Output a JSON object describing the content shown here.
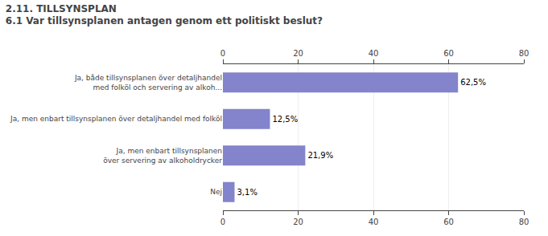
{
  "chart_data": {
    "type": "bar",
    "orientation": "horizontal",
    "title": "2.11. TILLSYNSPLAN",
    "subtitle": "6.1 Var tillsynsplanen antagen genom ett politiskt beslut?",
    "categories": [
      "Nej",
      "Ja, men enbart tillsynsplanen\növer servering av alkoholdrycker",
      "Ja, men enbart tillsynsplanen över detaljhandel med folköl",
      "Ja, både tillsynsplanen över detaljhandel\nmed folköl och servering av alkoh..."
    ],
    "values": [
      3.1,
      21.9,
      12.5,
      62.5
    ],
    "value_labels": [
      "3,1%",
      "21,9%",
      "12,5%",
      "62,5%"
    ],
    "data_labels": true,
    "color": "#8484cc",
    "xlim": [
      0,
      80
    ],
    "xticks": [
      0,
      20,
      40,
      60,
      80
    ],
    "grid": true
  }
}
